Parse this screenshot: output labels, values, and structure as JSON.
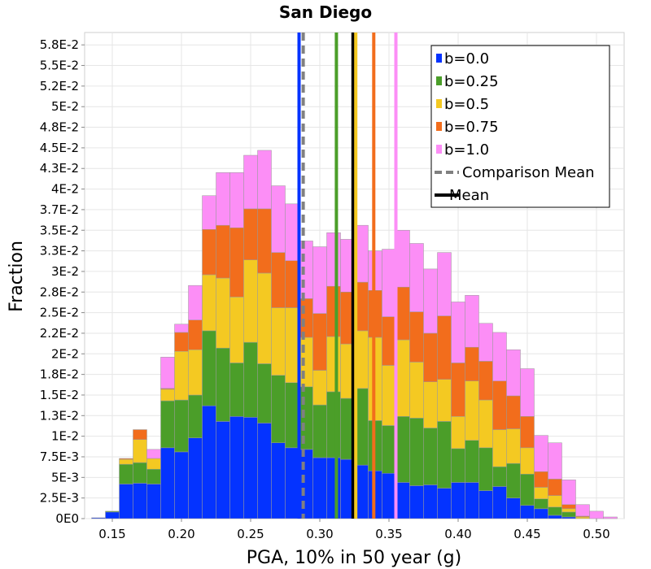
{
  "chart_data": {
    "type": "bar",
    "stacked": true,
    "title": "San Diego",
    "xlabel": "PGA, 10% in 50 year (g)",
    "ylabel": "Fraction",
    "xlim": [
      0.13,
      0.52
    ],
    "ylim": [
      0,
      0.059
    ],
    "bin_width": 0.01,
    "x_ticks": [
      {
        "value": 0.15,
        "label": "0.15"
      },
      {
        "value": 0.2,
        "label": "0.20"
      },
      {
        "value": 0.25,
        "label": "0.25"
      },
      {
        "value": 0.3,
        "label": "0.30"
      },
      {
        "value": 0.35,
        "label": "0.35"
      },
      {
        "value": 0.4,
        "label": "0.40"
      },
      {
        "value": 0.45,
        "label": "0.45"
      },
      {
        "value": 0.5,
        "label": "0.50"
      }
    ],
    "y_ticks": [
      {
        "value": 0,
        "label": "0E0"
      },
      {
        "value": 0.0025,
        "label": "2.5E-3"
      },
      {
        "value": 0.005,
        "label": "5E-3"
      },
      {
        "value": 0.0075,
        "label": "7.5E-3"
      },
      {
        "value": 0.01,
        "label": "1E-2"
      },
      {
        "value": 0.0125,
        "label": "1.3E-2"
      },
      {
        "value": 0.015,
        "label": "1.5E-2"
      },
      {
        "value": 0.0175,
        "label": "1.8E-2"
      },
      {
        "value": 0.02,
        "label": "2E-2"
      },
      {
        "value": 0.0225,
        "label": "2.2E-2"
      },
      {
        "value": 0.025,
        "label": "2.5E-2"
      },
      {
        "value": 0.0275,
        "label": "2.8E-2"
      },
      {
        "value": 0.03,
        "label": "3E-2"
      },
      {
        "value": 0.0325,
        "label": "3.3E-2"
      },
      {
        "value": 0.035,
        "label": "3.5E-2"
      },
      {
        "value": 0.0375,
        "label": "3.7E-2"
      },
      {
        "value": 0.04,
        "label": "4E-2"
      },
      {
        "value": 0.0425,
        "label": "4.3E-2"
      },
      {
        "value": 0.045,
        "label": "4.5E-2"
      },
      {
        "value": 0.0475,
        "label": "4.8E-2"
      },
      {
        "value": 0.05,
        "label": "5E-2"
      },
      {
        "value": 0.0525,
        "label": "5.2E-2"
      },
      {
        "value": 0.055,
        "label": "5.5E-2"
      },
      {
        "value": 0.0575,
        "label": "5.8E-2"
      }
    ],
    "x": [
      0.14,
      0.15,
      0.16,
      0.17,
      0.18,
      0.19,
      0.2,
      0.21,
      0.22,
      0.23,
      0.24,
      0.25,
      0.26,
      0.27,
      0.28,
      0.29,
      0.3,
      0.31,
      0.32,
      0.33,
      0.34,
      0.35,
      0.36,
      0.37,
      0.38,
      0.39,
      0.4,
      0.41,
      0.42,
      0.43,
      0.44,
      0.45,
      0.46,
      0.47,
      0.48,
      0.49,
      0.5,
      0.51
    ],
    "series": [
      {
        "name": "b=0.0",
        "color": "#0433ff",
        "values": [
          0.0001,
          0.0008,
          0.0042,
          0.0043,
          0.0042,
          0.0086,
          0.0081,
          0.0098,
          0.0137,
          0.0118,
          0.0124,
          0.0123,
          0.0116,
          0.0092,
          0.0086,
          0.0084,
          0.0074,
          0.0074,
          0.0072,
          0.0065,
          0.0058,
          0.0055,
          0.0044,
          0.004,
          0.0041,
          0.0037,
          0.0044,
          0.0044,
          0.0034,
          0.0039,
          0.0025,
          0.0016,
          0.0012,
          0.0004,
          0.0002,
          0.0,
          0.0,
          0.0
        ]
      },
      {
        "name": "b=0.25",
        "color": "#4b9e29",
        "values": [
          0.0,
          0.0001,
          0.0024,
          0.0025,
          0.0018,
          0.0057,
          0.0063,
          0.0052,
          0.0091,
          0.0089,
          0.0065,
          0.0091,
          0.0072,
          0.0082,
          0.0079,
          0.0076,
          0.0064,
          0.008,
          0.0074,
          0.0093,
          0.0061,
          0.0058,
          0.008,
          0.0082,
          0.0069,
          0.0081,
          0.0041,
          0.0051,
          0.0052,
          0.0024,
          0.0042,
          0.0038,
          0.0012,
          0.001,
          0.0006,
          0.0,
          0.0,
          0.0
        ]
      },
      {
        "name": "b=0.5",
        "color": "#f4c922",
        "values": [
          0.0,
          0.0,
          0.0006,
          0.0028,
          0.0013,
          0.0014,
          0.0059,
          0.0055,
          0.0068,
          0.0085,
          0.008,
          0.01,
          0.011,
          0.0082,
          0.0091,
          0.006,
          0.0042,
          0.0067,
          0.0066,
          0.007,
          0.0101,
          0.0073,
          0.0093,
          0.0068,
          0.0056,
          0.0051,
          0.0039,
          0.0072,
          0.0058,
          0.0045,
          0.0042,
          0.0032,
          0.0014,
          0.0014,
          0.0004,
          0.0002,
          0.0,
          0.0
        ]
      },
      {
        "name": "b=0.75",
        "color": "#f26d1c",
        "values": [
          0.0,
          0.0,
          0.0001,
          0.0012,
          0.0,
          0.0001,
          0.0023,
          0.0036,
          0.0055,
          0.0064,
          0.0084,
          0.0062,
          0.0078,
          0.0067,
          0.0057,
          0.0047,
          0.0069,
          0.0061,
          0.0063,
          0.0059,
          0.0057,
          0.0059,
          0.0064,
          0.0061,
          0.0059,
          0.0077,
          0.0065,
          0.0041,
          0.0047,
          0.0059,
          0.004,
          0.0038,
          0.0019,
          0.002,
          0.0005,
          0.0001,
          0.0,
          0.0
        ]
      },
      {
        "name": "b=1.0",
        "color": "#fc8ef6",
        "values": [
          0.0,
          0.0,
          0.0,
          0.0,
          0.0011,
          0.0038,
          0.001,
          0.0042,
          0.0041,
          0.0064,
          0.0067,
          0.0065,
          0.0071,
          0.0081,
          0.0069,
          0.007,
          0.0081,
          0.0065,
          0.0064,
          0.0069,
          0.0048,
          0.0082,
          0.0069,
          0.0083,
          0.0078,
          0.0077,
          0.0074,
          0.0063,
          0.0046,
          0.0059,
          0.0056,
          0.0058,
          0.0044,
          0.0044,
          0.003,
          0.0014,
          0.0009,
          0.0002
        ]
      }
    ],
    "vertical_lines": [
      {
        "name": "b=0.0",
        "x": 0.285,
        "color": "#0433ff",
        "style": "solid"
      },
      {
        "name": "Comparison Mean",
        "x": 0.288,
        "color": "#808080",
        "style": "dashed"
      },
      {
        "name": "b=0.25",
        "x": 0.312,
        "color": "#4b9e29",
        "style": "solid"
      },
      {
        "name": "Mean",
        "x": 0.324,
        "color": "#000000",
        "style": "solid"
      },
      {
        "name": "b=0.5",
        "x": 0.326,
        "color": "#f4c922",
        "style": "solid"
      },
      {
        "name": "b=0.75",
        "x": 0.339,
        "color": "#f26d1c",
        "style": "solid"
      },
      {
        "name": "b=1.0",
        "x": 0.355,
        "color": "#fc8ef6",
        "style": "solid"
      }
    ],
    "legend": {
      "placement": "top-right",
      "entries": [
        {
          "label": "b=0.0",
          "color": "#0433ff",
          "kind": "swatch"
        },
        {
          "label": "b=0.25",
          "color": "#4b9e29",
          "kind": "swatch"
        },
        {
          "label": "b=0.5",
          "color": "#f4c922",
          "kind": "swatch"
        },
        {
          "label": "b=0.75",
          "color": "#f26d1c",
          "kind": "swatch"
        },
        {
          "label": "b=1.0",
          "color": "#fc8ef6",
          "kind": "swatch"
        },
        {
          "label": "Comparison Mean",
          "color": "#808080",
          "kind": "dashed-line"
        },
        {
          "label": "Mean",
          "color": "#000000",
          "kind": "line"
        }
      ]
    },
    "grid": true
  }
}
